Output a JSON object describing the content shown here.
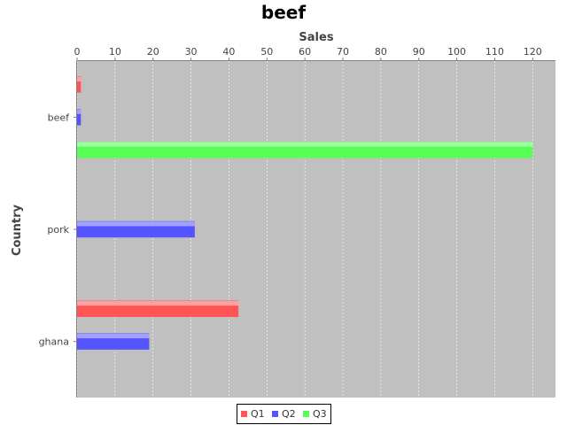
{
  "chart_data": {
    "type": "bar",
    "orientation": "horizontal",
    "title": "beef",
    "xlabel": "Sales",
    "ylabel": "Country",
    "categories": [
      "beef",
      "pork",
      "ghana"
    ],
    "series": [
      {
        "name": "Q1",
        "color": "#ff5555",
        "values": [
          1,
          0,
          42.5
        ]
      },
      {
        "name": "Q2",
        "color": "#5555ff",
        "values": [
          1,
          31,
          19
        ]
      },
      {
        "name": "Q3",
        "color": "#55ff55",
        "values": [
          120,
          0,
          0
        ]
      }
    ],
    "xlim": [
      0,
      126
    ],
    "xticks": [
      0,
      10,
      20,
      30,
      40,
      50,
      60,
      70,
      80,
      90,
      100,
      110,
      120
    ],
    "grid": true,
    "legend": "bottom"
  }
}
